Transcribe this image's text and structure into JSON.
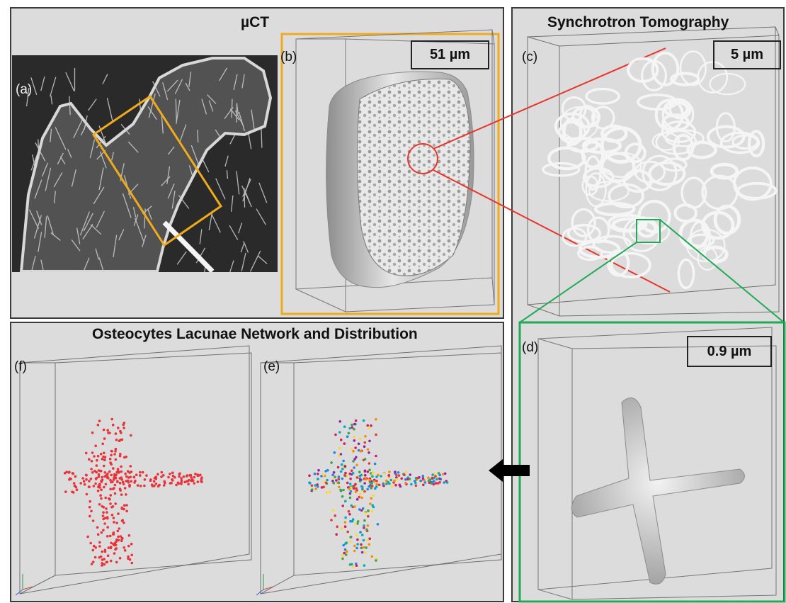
{
  "titles": {
    "micro_ct": "µCT",
    "synchrotron": "Synchrotron Tomography",
    "network": "Osteocytes Lacunae Network and Distribution"
  },
  "panel_labels": {
    "a": "(a)",
    "b": "(b)",
    "c": "(c)",
    "d": "(d)",
    "e": "(e)",
    "f": "(f)"
  },
  "scale_bars": {
    "b": "51 µm",
    "c": "5 µm",
    "d": "0.9 µm"
  },
  "colors": {
    "panel_bg": "#dcdcdc",
    "microct_highlight": "#f0ab1c",
    "synchrotron_zoom": "#e8352b",
    "osteocyte_zoom": "#1faa55",
    "lacunae_points": "#e8333a",
    "arrow": "#000000"
  },
  "icons": {
    "arrow": "arrow-left-icon"
  }
}
